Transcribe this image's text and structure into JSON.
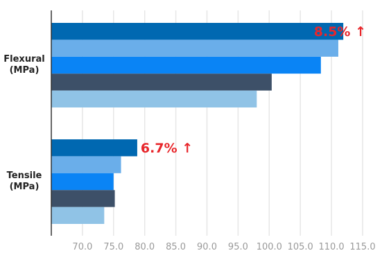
{
  "chart_data": {
    "type": "hbar",
    "categories": [
      "Flexural\n(MPa)",
      "Tensile\n(MPa)"
    ],
    "series": [
      {
        "color": "#0068b1",
        "values": [
          111.9,
          78.8
        ]
      },
      {
        "color": "#6aaeea",
        "values": [
          111.1,
          76.2
        ]
      },
      {
        "color": "#0a84f5",
        "values": [
          108.3,
          75.0
        ]
      },
      {
        "color": "#3d5068",
        "values": [
          100.4,
          75.2
        ]
      },
      {
        "color": "#90c3e6",
        "values": [
          98.0,
          73.5
        ]
      }
    ],
    "annotations": [
      {
        "text": "8.5% ↑",
        "color": "#e8262b"
      },
      {
        "text": "6.7% ↑",
        "color": "#e8262b"
      }
    ],
    "xlim": [
      65,
      115
    ],
    "xticks": [
      {
        "value": 70,
        "label": "70.0"
      },
      {
        "value": 75,
        "label": "75.0"
      },
      {
        "value": 80,
        "label": "80.0"
      },
      {
        "value": 85,
        "label": "85.0"
      },
      {
        "value": 90,
        "label": "90.0"
      },
      {
        "value": 95,
        "label": "95.0"
      },
      {
        "value": 100,
        "label": "100.0"
      },
      {
        "value": 105,
        "label": "105.0"
      },
      {
        "value": 110,
        "label": "110.0"
      },
      {
        "value": 115,
        "label": "115.0"
      }
    ],
    "grid": true
  }
}
